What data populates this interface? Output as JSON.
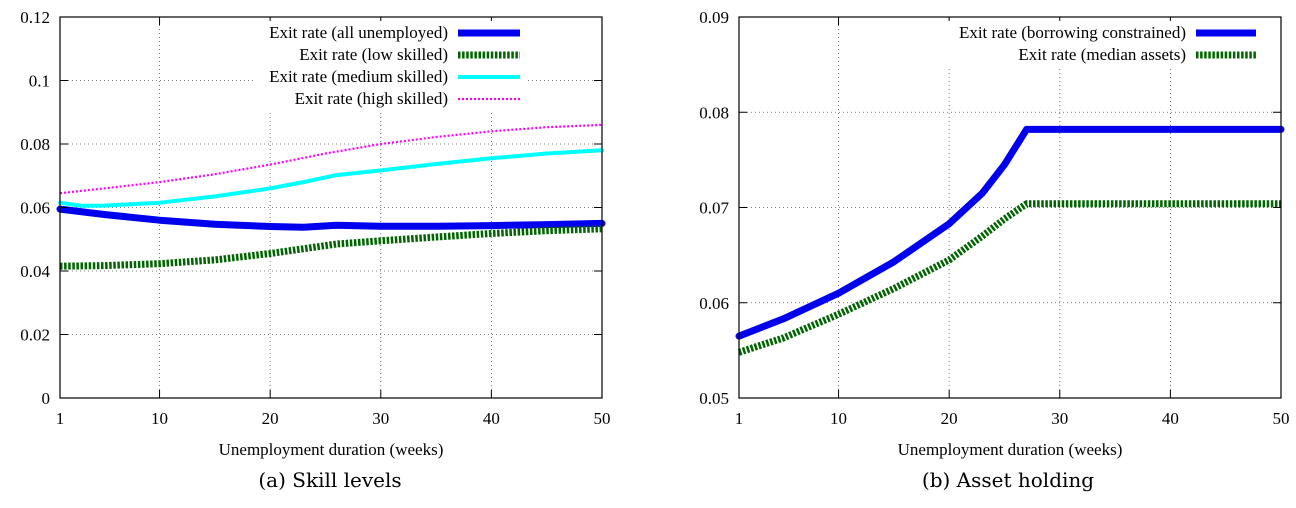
{
  "chart_data": [
    {
      "type": "line",
      "caption": "(a) Skill levels",
      "xlabel": "Unemployment duration (weeks)",
      "ylabel": "",
      "xlim": [
        1,
        50
      ],
      "ylim": [
        0,
        0.12
      ],
      "xticks": [
        1,
        10,
        20,
        30,
        40,
        50
      ],
      "yticks": [
        0,
        0.02,
        0.04,
        0.06,
        0.08,
        0.1,
        0.12
      ],
      "ytick_labels": [
        "0",
        "0.02",
        "0.04",
        "0.06",
        "0.08",
        "0.1",
        "0.12"
      ],
      "grid": true,
      "legend_position": "top-right",
      "series": [
        {
          "name": "Exit rate (all unemployed)",
          "color": "#0000ee",
          "style": "solid-thick",
          "x": [
            1,
            5,
            10,
            15,
            20,
            23,
            26,
            30,
            35,
            40,
            45,
            50
          ],
          "y": [
            0.0595,
            0.0578,
            0.056,
            0.0547,
            0.054,
            0.0538,
            0.0544,
            0.0541,
            0.0541,
            0.0543,
            0.0546,
            0.055
          ]
        },
        {
          "name": "Exit rate (low skilled)",
          "color": "#006400",
          "style": "dotted-thick",
          "x": [
            1,
            5,
            10,
            15,
            20,
            23,
            26,
            30,
            35,
            40,
            45,
            50
          ],
          "y": [
            0.0415,
            0.0417,
            0.0423,
            0.0435,
            0.0455,
            0.047,
            0.0485,
            0.0495,
            0.0507,
            0.0518,
            0.0527,
            0.0533
          ]
        },
        {
          "name": "Exit rate (medium skilled)",
          "color": "#00ffff",
          "style": "solid",
          "x": [
            1,
            3,
            5,
            10,
            15,
            20,
            23,
            26,
            30,
            35,
            40,
            45,
            50
          ],
          "y": [
            0.0615,
            0.0605,
            0.0606,
            0.0615,
            0.0635,
            0.066,
            0.068,
            0.0702,
            0.0717,
            0.0737,
            0.0755,
            0.077,
            0.078
          ]
        },
        {
          "name": "Exit rate (high skilled)",
          "color": "#ff00ff",
          "style": "dotted",
          "x": [
            1,
            5,
            10,
            15,
            20,
            25,
            30,
            35,
            40,
            45,
            50
          ],
          "y": [
            0.0645,
            0.066,
            0.068,
            0.0705,
            0.0735,
            0.077,
            0.08,
            0.0822,
            0.084,
            0.0853,
            0.086
          ]
        }
      ]
    },
    {
      "type": "line",
      "caption": "(b) Asset holding",
      "xlabel": "Unemployment duration (weeks)",
      "ylabel": "",
      "xlim": [
        1,
        50
      ],
      "ylim": [
        0.05,
        0.09
      ],
      "xticks": [
        1,
        10,
        20,
        30,
        40,
        50
      ],
      "yticks": [
        0.05,
        0.06,
        0.07,
        0.08,
        0.09
      ],
      "ytick_labels": [
        "0.05",
        "0.06",
        "0.07",
        "0.08",
        "0.09"
      ],
      "grid": true,
      "legend_position": "top-right",
      "series": [
        {
          "name": "Exit rate (borrowing constrained)",
          "color": "#0000ee",
          "style": "solid-thick",
          "x": [
            1,
            5,
            10,
            15,
            20,
            23,
            25,
            27,
            30,
            35,
            40,
            45,
            50
          ],
          "y": [
            0.0565,
            0.0583,
            0.061,
            0.0643,
            0.0683,
            0.0715,
            0.0745,
            0.0782,
            0.0782,
            0.0782,
            0.0782,
            0.0782,
            0.0782
          ]
        },
        {
          "name": "Exit rate (median assets)",
          "color": "#006400",
          "style": "dotted-thick",
          "x": [
            1,
            5,
            10,
            15,
            20,
            23,
            25,
            27,
            30,
            35,
            40,
            45,
            50
          ],
          "y": [
            0.0548,
            0.0563,
            0.0588,
            0.0615,
            0.0645,
            0.067,
            0.0688,
            0.0704,
            0.0704,
            0.0704,
            0.0704,
            0.0704,
            0.0704
          ]
        }
      ]
    }
  ]
}
